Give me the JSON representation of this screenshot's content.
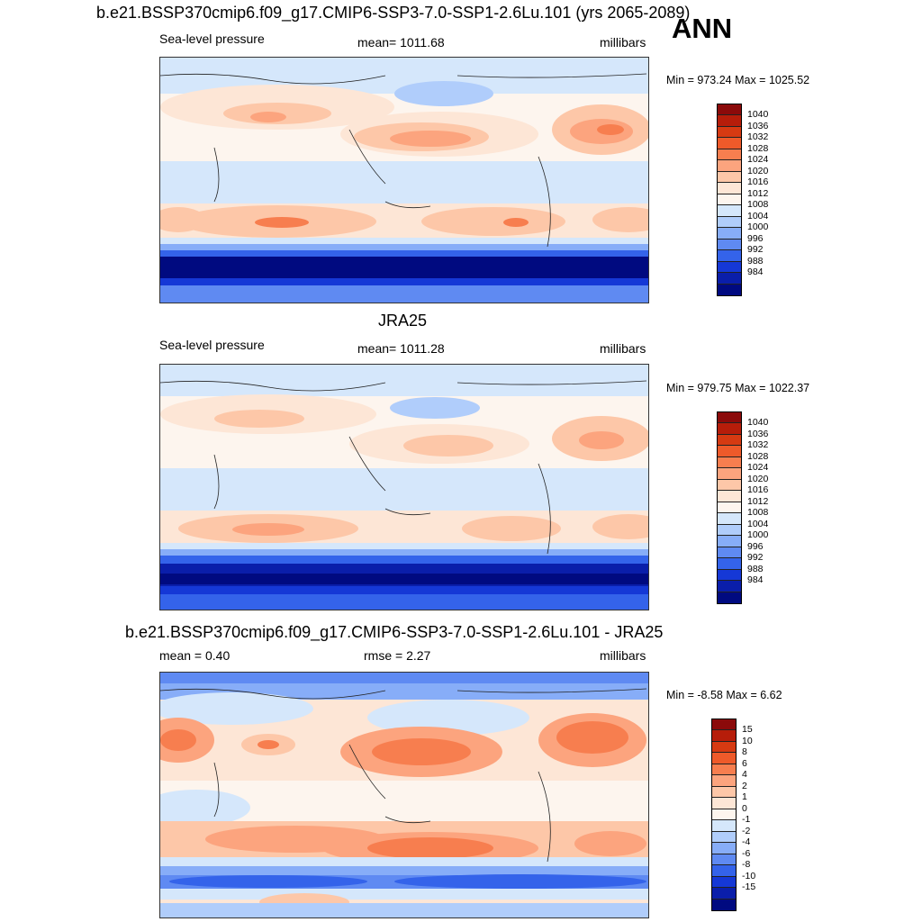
{
  "header": {
    "case_title": "b.e21.BSSP370cmip6.f09_g17.CMIP6-SSP3-7.0-SSP1-2.6Lu.101 (yrs 2065-2089)",
    "season": "ANN"
  },
  "panels": [
    {
      "title": "",
      "left_label": "Sea-level pressure",
      "center_label": "mean= 1011.68",
      "right_label": "millibars",
      "minmax": "Min = 973.24 Max = 1025.52",
      "colorbar": {
        "labels": [
          "1040",
          "1036",
          "1032",
          "1028",
          "1024",
          "1020",
          "1016",
          "1012",
          "1008",
          "1004",
          "1000",
          "996",
          "992",
          "988",
          "984"
        ],
        "colors": [
          "#8b0a0a",
          "#b61d0a",
          "#d63a12",
          "#ee5a2a",
          "#f77e4f",
          "#fca47e",
          "#fdc7a8",
          "#fde6d6",
          "#fdf5ee",
          "#d5e7fb",
          "#b0cdfb",
          "#87adf8",
          "#5f8af2",
          "#3463ea",
          "#1538d6",
          "#0a1eaa",
          "#000a80"
        ]
      }
    },
    {
      "title": "JRA25",
      "left_label": "Sea-level pressure",
      "center_label": "mean= 1011.28",
      "right_label": "millibars",
      "minmax": "Min = 979.75 Max = 1022.37",
      "colorbar": {
        "labels": [
          "1040",
          "1036",
          "1032",
          "1028",
          "1024",
          "1020",
          "1016",
          "1012",
          "1008",
          "1004",
          "1000",
          "996",
          "992",
          "988",
          "984"
        ],
        "colors": [
          "#8b0a0a",
          "#b61d0a",
          "#d63a12",
          "#ee5a2a",
          "#f77e4f",
          "#fca47e",
          "#fdc7a8",
          "#fde6d6",
          "#fdf5ee",
          "#d5e7fb",
          "#b0cdfb",
          "#87adf8",
          "#5f8af2",
          "#3463ea",
          "#1538d6",
          "#0a1eaa",
          "#000a80"
        ]
      }
    },
    {
      "title": "b.e21.BSSP370cmip6.f09_g17.CMIP6-SSP3-7.0-SSP1-2.6Lu.101 - JRA25",
      "left_label": "mean =   0.40",
      "center_label": "rmse =   2.27",
      "right_label": "millibars",
      "minmax": "Min =  -8.58 Max =   6.62",
      "colorbar": {
        "labels": [
          "15",
          "10",
          "8",
          "6",
          "4",
          "2",
          "1",
          "0",
          "-1",
          "-2",
          "-4",
          "-6",
          "-8",
          "-10",
          "-15"
        ],
        "colors": [
          "#8b0a0a",
          "#b61d0a",
          "#d63a12",
          "#ee5a2a",
          "#f77e4f",
          "#fca47e",
          "#fdc7a8",
          "#fde6d6",
          "#fdf5ee",
          "#d5e7fb",
          "#b0cdfb",
          "#87adf8",
          "#5f8af2",
          "#3463ea",
          "#1538d6",
          "#0a1eaa",
          "#000a80"
        ]
      }
    }
  ]
}
